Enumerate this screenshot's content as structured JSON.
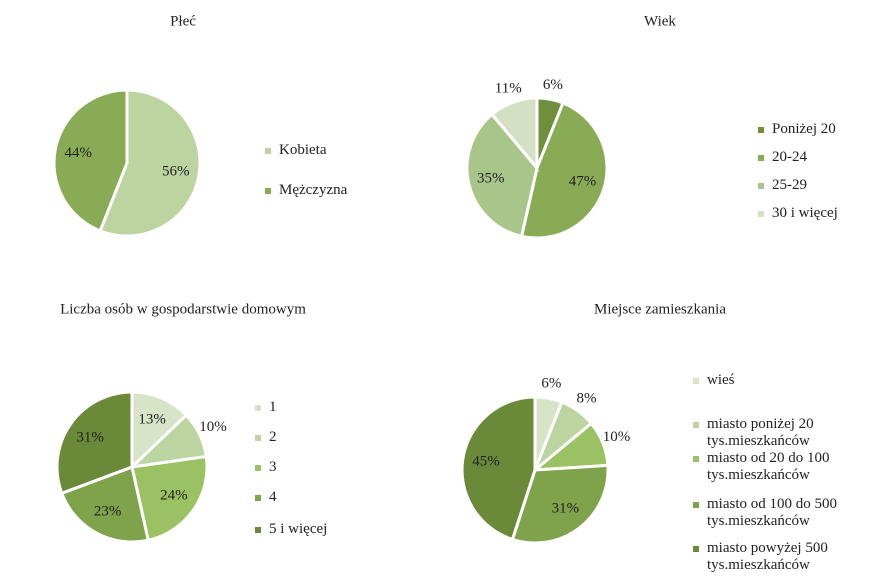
{
  "chart_data": [
    {
      "type": "pie",
      "title": "Płeć",
      "categories": [
        "Kobieta",
        "Mężczyzna"
      ],
      "values": [
        56,
        44
      ],
      "value_labels": [
        "56%",
        "44%"
      ],
      "colors": [
        "#bcd4a0",
        "#8aab55"
      ]
    },
    {
      "type": "pie",
      "title": "Wiek",
      "categories": [
        "Poniżej 20",
        "20-24",
        "25-29",
        "30 i więcej"
      ],
      "values": [
        6,
        47,
        35,
        11
      ],
      "value_labels": [
        "6%",
        "47%",
        "35%",
        "11%"
      ],
      "colors": [
        "#6f8f3c",
        "#8aab55",
        "#a9c68a",
        "#d4e0c4"
      ]
    },
    {
      "type": "pie",
      "title": "Liczba osób w gospodarstwie domowym",
      "categories": [
        "1",
        "2",
        "3",
        "4",
        "5 i więcej"
      ],
      "values": [
        13,
        10,
        24,
        23,
        31
      ],
      "value_labels": [
        "13%",
        "10%",
        "24%",
        "23%",
        "31%"
      ],
      "colors": [
        "#d8e4c8",
        "#bcd4a0",
        "#9bc262",
        "#7fa34a",
        "#6a8a3a"
      ]
    },
    {
      "type": "pie",
      "title": "Miejsce zamieszkania",
      "categories": [
        "wieś",
        "miasto poniżej 20 tys.mieszkańców",
        "miasto od 20 do 100 tys.mieszkańców",
        "miasto od 100 do 500 tys.mieszkańców",
        "miasto powyżej 500 tys.mieszkańców"
      ],
      "values": [
        6,
        8,
        10,
        31,
        45
      ],
      "value_labels": [
        "6%",
        "8%",
        "10%",
        "31%",
        "45%"
      ],
      "colors": [
        "#d8e4c8",
        "#bcd4a0",
        "#9bc262",
        "#7fa34a",
        "#6a8a3a"
      ]
    }
  ]
}
